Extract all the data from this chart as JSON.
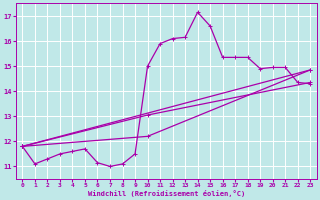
{
  "xlabel": "Windchill (Refroidissement éolien,°C)",
  "background_color": "#c0e8e8",
  "line_color": "#aa00aa",
  "grid_color": "#b0d8d8",
  "ylim": [
    10.5,
    17.5
  ],
  "xlim": [
    -0.5,
    23.5
  ],
  "yticks": [
    11,
    12,
    13,
    14,
    15,
    16,
    17
  ],
  "xticks": [
    0,
    1,
    2,
    3,
    4,
    5,
    6,
    7,
    8,
    9,
    10,
    11,
    12,
    13,
    14,
    15,
    16,
    17,
    18,
    19,
    20,
    21,
    22,
    23
  ],
  "line1_x": [
    0,
    1,
    2,
    3,
    4,
    5,
    6,
    7,
    8,
    9,
    10,
    11,
    12,
    13,
    14,
    15,
    16,
    17,
    18,
    19,
    20,
    21,
    22,
    23
  ],
  "line1_y": [
    11.8,
    11.1,
    11.3,
    11.5,
    11.6,
    11.7,
    11.15,
    11.0,
    11.1,
    11.5,
    15.0,
    15.9,
    16.1,
    16.15,
    17.15,
    16.6,
    15.35,
    15.35,
    15.35,
    14.9,
    14.95,
    14.95,
    14.35,
    14.3
  ],
  "line2_x": [
    0,
    23
  ],
  "line2_y": [
    11.8,
    14.85
  ],
  "line3_x": [
    0,
    10,
    23
  ],
  "line3_y": [
    11.8,
    13.05,
    14.35
  ],
  "line4_x": [
    0,
    10,
    23
  ],
  "line4_y": [
    11.8,
    12.2,
    14.85
  ],
  "markersize": 2.0,
  "linewidth": 0.9
}
